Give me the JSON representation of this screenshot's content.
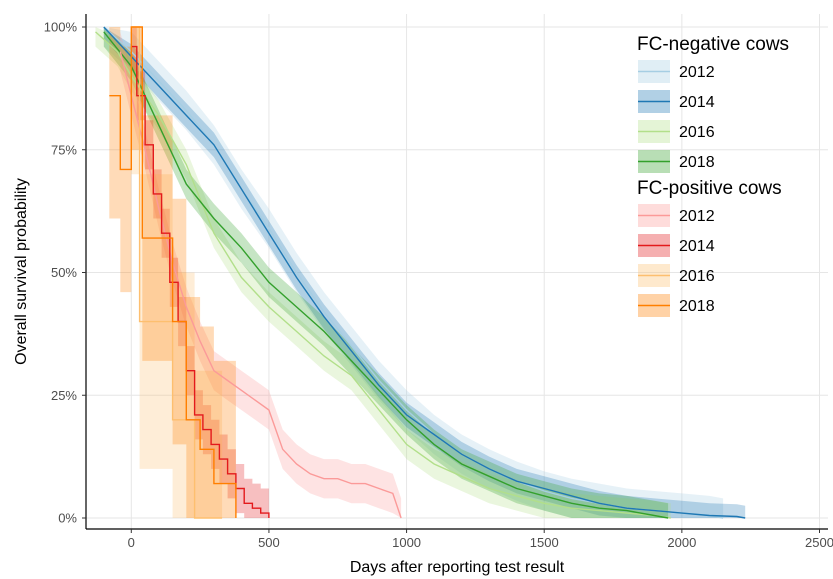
{
  "chart_data": {
    "type": "line",
    "subtype": "kaplan-meier survival curves with confidence bands",
    "xlabel": "Days after reporting test result",
    "ylabel": "Overall survival probability",
    "xlim": [
      -150,
      2520
    ],
    "ylim": [
      0,
      100
    ],
    "x_ticks": [
      0,
      500,
      1000,
      1500,
      2000,
      2500
    ],
    "x_tick_labels": [
      "0",
      "500",
      "1000",
      "1500",
      "2000",
      "2500"
    ],
    "y_ticks": [
      0,
      25,
      50,
      75,
      100
    ],
    "y_tick_labels": [
      "0%",
      "25%",
      "50%",
      "75%",
      "100%"
    ],
    "grid": true,
    "legend_position": "top-right",
    "legend_groups": [
      {
        "title": "FC-negative cows",
        "entries": [
          {
            "label": "2012",
            "color": "#a6cee3"
          },
          {
            "label": "2014",
            "color": "#1f78b4"
          },
          {
            "label": "2016",
            "color": "#b2df8a"
          },
          {
            "label": "2018",
            "color": "#33a02c"
          }
        ]
      },
      {
        "title": "FC-positive cows",
        "entries": [
          {
            "label": "2012",
            "color": "#fb9a99"
          },
          {
            "label": "2014",
            "color": "#e31a1c"
          },
          {
            "label": "2016",
            "color": "#fdbf6f"
          },
          {
            "label": "2018",
            "color": "#ff7f00"
          }
        ]
      }
    ],
    "series": [
      {
        "group": "FC-negative cows",
        "year": "2012",
        "color": "#a6cee3",
        "step": false,
        "band_width": 4,
        "x": [
          -100,
          0,
          100,
          200,
          300,
          400,
          500,
          600,
          700,
          800,
          900,
          1000,
          1100,
          1200,
          1300,
          1400,
          1500,
          1600,
          1700,
          1800,
          1900,
          2000,
          2100,
          2150
        ],
        "y": [
          100,
          95,
          89,
          83,
          76,
          67,
          59,
          50,
          42,
          35,
          28,
          22,
          17,
          13,
          10,
          7.5,
          5.5,
          4,
          3,
          2,
          1.5,
          1,
          0.5,
          0
        ]
      },
      {
        "group": "FC-negative cows",
        "year": "2014",
        "color": "#1f78b4",
        "step": false,
        "band_width": 2.5,
        "x": [
          -100,
          0,
          100,
          200,
          300,
          400,
          500,
          600,
          700,
          800,
          900,
          1000,
          1100,
          1200,
          1300,
          1400,
          1500,
          1600,
          1700,
          1800,
          1900,
          2000,
          2100,
          2200,
          2230
        ],
        "y": [
          100,
          94,
          88,
          82,
          76,
          67,
          58,
          49,
          41,
          34,
          27,
          21,
          17,
          13,
          10,
          7.5,
          6,
          4.5,
          3,
          2,
          1.5,
          1,
          0.5,
          0.3,
          0
        ]
      },
      {
        "group": "FC-negative cows",
        "year": "2016",
        "color": "#b2df8a",
        "step": false,
        "band_width": 3,
        "x": [
          -130,
          -50,
          0,
          100,
          200,
          300,
          400,
          500,
          600,
          700,
          800,
          900,
          1000,
          1100,
          1200,
          1300,
          1400,
          1500,
          1600,
          1700,
          1800,
          1900,
          1960
        ],
        "y": [
          99,
          95,
          90,
          82,
          72,
          58,
          49,
          43,
          38,
          33,
          29,
          22,
          15,
          11,
          8.5,
          6,
          4.5,
          3,
          2,
          1.5,
          1,
          0.5,
          0
        ]
      },
      {
        "group": "FC-negative cows",
        "year": "2018",
        "color": "#33a02c",
        "step": false,
        "band_width": 3,
        "x": [
          -100,
          0,
          100,
          200,
          300,
          400,
          500,
          600,
          700,
          800,
          900,
          1000,
          1100,
          1200,
          1300,
          1400,
          1500,
          1600,
          1700,
          1800,
          1900,
          1950
        ],
        "y": [
          99,
          92,
          80,
          68,
          61,
          55,
          48,
          43,
          38,
          32,
          26,
          20,
          15,
          11,
          8.5,
          6,
          4.5,
          3,
          2,
          1.5,
          0.5,
          0
        ]
      },
      {
        "group": "FC-positive cows",
        "year": "2012",
        "color": "#fb9a99",
        "step": false,
        "band_width": 4,
        "x": [
          -40,
          0,
          50,
          100,
          150,
          200,
          250,
          300,
          350,
          400,
          450,
          500,
          550,
          600,
          650,
          700,
          750,
          800,
          850,
          900,
          950,
          980
        ],
        "y": [
          95,
          86,
          75,
          63,
          52,
          43,
          36,
          30,
          28,
          26,
          24,
          22,
          14,
          11,
          9,
          8,
          8,
          7,
          7,
          6,
          5,
          0
        ]
      },
      {
        "group": "FC-positive cows",
        "year": "2014",
        "color": "#e31a1c",
        "step": true,
        "band_width": 5,
        "x": [
          0,
          20,
          50,
          80,
          110,
          140,
          170,
          200,
          230,
          260,
          290,
          320,
          350,
          380,
          410,
          440,
          470,
          500
        ],
        "y": [
          96,
          86,
          76,
          66,
          58,
          48,
          40,
          30,
          21,
          18,
          15,
          12,
          9,
          6,
          3,
          2,
          1,
          0
        ]
      },
      {
        "group": "FC-positive cows",
        "year": "2016",
        "color": "#fdbf6f",
        "step": true,
        "band_width": 30,
        "x": [
          0,
          30,
          150,
          230,
          330
        ],
        "y": [
          100,
          40,
          20,
          0,
          0
        ]
      },
      {
        "group": "FC-positive cows",
        "year": "2018",
        "color": "#ff7f00",
        "step": true,
        "band_width": 25,
        "x": [
          -80,
          -40,
          0,
          40,
          80,
          150,
          200,
          250,
          300,
          380
        ],
        "y": [
          86,
          71,
          100,
          57,
          57,
          40,
          20,
          14,
          7,
          0
        ]
      }
    ]
  }
}
